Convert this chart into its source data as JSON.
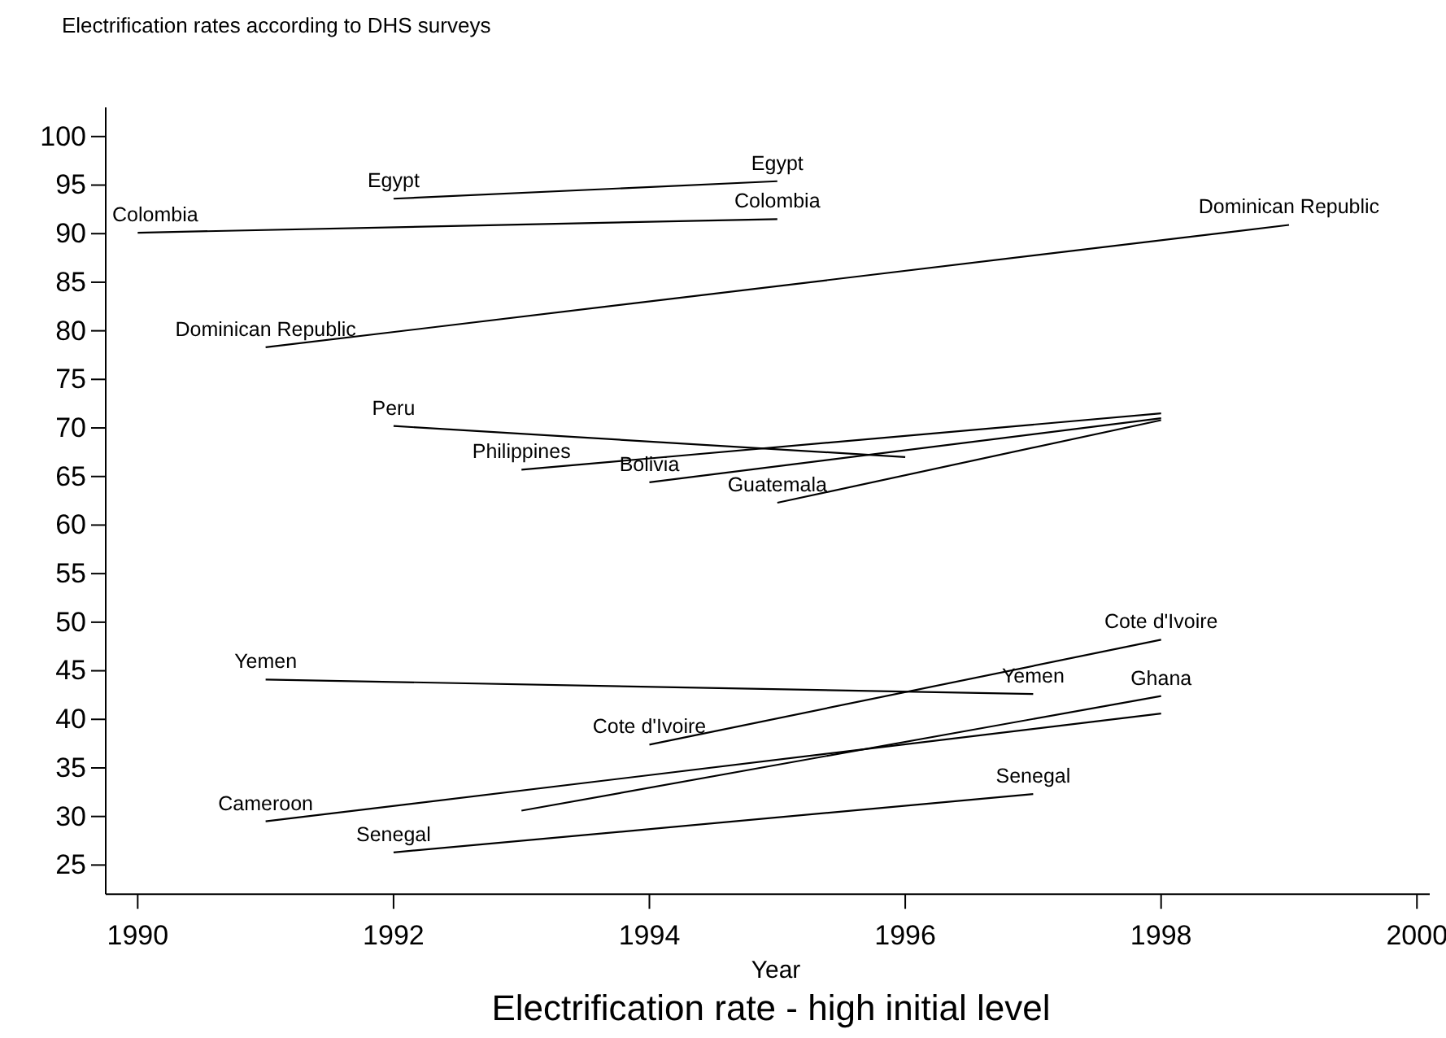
{
  "chart_data": {
    "type": "line",
    "title": "Electrification rates according to DHS surveys",
    "xlabel": "Year",
    "annotations": [
      "Electrification rate - high initial level"
    ],
    "xlim": [
      1989.75,
      2000.1
    ],
    "xticks": [
      1990,
      1992,
      1994,
      1996,
      1998,
      2000
    ],
    "ylim": [
      22,
      103
    ],
    "yticks": [
      25,
      30,
      35,
      40,
      45,
      50,
      55,
      60,
      65,
      70,
      75,
      80,
      85,
      90,
      95,
      100
    ],
    "grid": false,
    "marker": "none",
    "line_style": "solid",
    "series": [
      {
        "color": "#000000",
        "x": [
          1992,
          1995
        ],
        "values": [
          93.6,
          95.4
        ],
        "value_labels": [
          "Egypt",
          "Egypt"
        ]
      },
      {
        "color": "#000000",
        "x": [
          1990,
          1995
        ],
        "values": [
          90.1,
          91.5
        ],
        "value_labels": [
          "Colombia",
          "Colombia"
        ]
      },
      {
        "color": "#000000",
        "x": [
          1991,
          1999
        ],
        "values": [
          78.3,
          90.9
        ],
        "value_labels": [
          "Dominican Republic",
          "Dominican Republic"
        ]
      },
      {
        "color": "#000000",
        "x": [
          1992,
          1996
        ],
        "values": [
          70.2,
          67.0
        ],
        "value_labels": [
          "Peru",
          null
        ]
      },
      {
        "color": "#000000",
        "x": [
          1993,
          1998
        ],
        "values": [
          65.7,
          71.5
        ],
        "value_labels": [
          "Philippines",
          null
        ]
      },
      {
        "color": "#000000",
        "x": [
          1994,
          1998
        ],
        "values": [
          64.4,
          71.0
        ],
        "value_labels": [
          "Bolivia",
          null
        ]
      },
      {
        "color": "#000000",
        "x": [
          1995,
          1998
        ],
        "values": [
          62.3,
          70.8
        ],
        "value_labels": [
          "Guatemala",
          null
        ]
      },
      {
        "color": "#000000",
        "x": [
          1991,
          1997
        ],
        "values": [
          44.1,
          42.6
        ],
        "value_labels": [
          "Yemen",
          "Yemen"
        ]
      },
      {
        "color": "#000000",
        "x": [
          1994,
          1998
        ],
        "values": [
          37.4,
          48.2
        ],
        "value_labels": [
          "Cote d'Ivoire",
          "Cote d'Ivoire"
        ]
      },
      {
        "color": "#000000",
        "x": [
          1991,
          1998
        ],
        "values": [
          29.5,
          40.6
        ],
        "value_labels": [
          "Cameroon",
          null
        ]
      },
      {
        "color": "#000000",
        "x": [
          1993,
          1998
        ],
        "values": [
          30.6,
          42.4
        ],
        "value_labels": [
          null,
          "Ghana"
        ]
      },
      {
        "color": "#000000",
        "x": [
          1992,
          1997
        ],
        "values": [
          26.3,
          32.3
        ],
        "value_labels": [
          "Senegal",
          "Senegal"
        ]
      }
    ]
  }
}
